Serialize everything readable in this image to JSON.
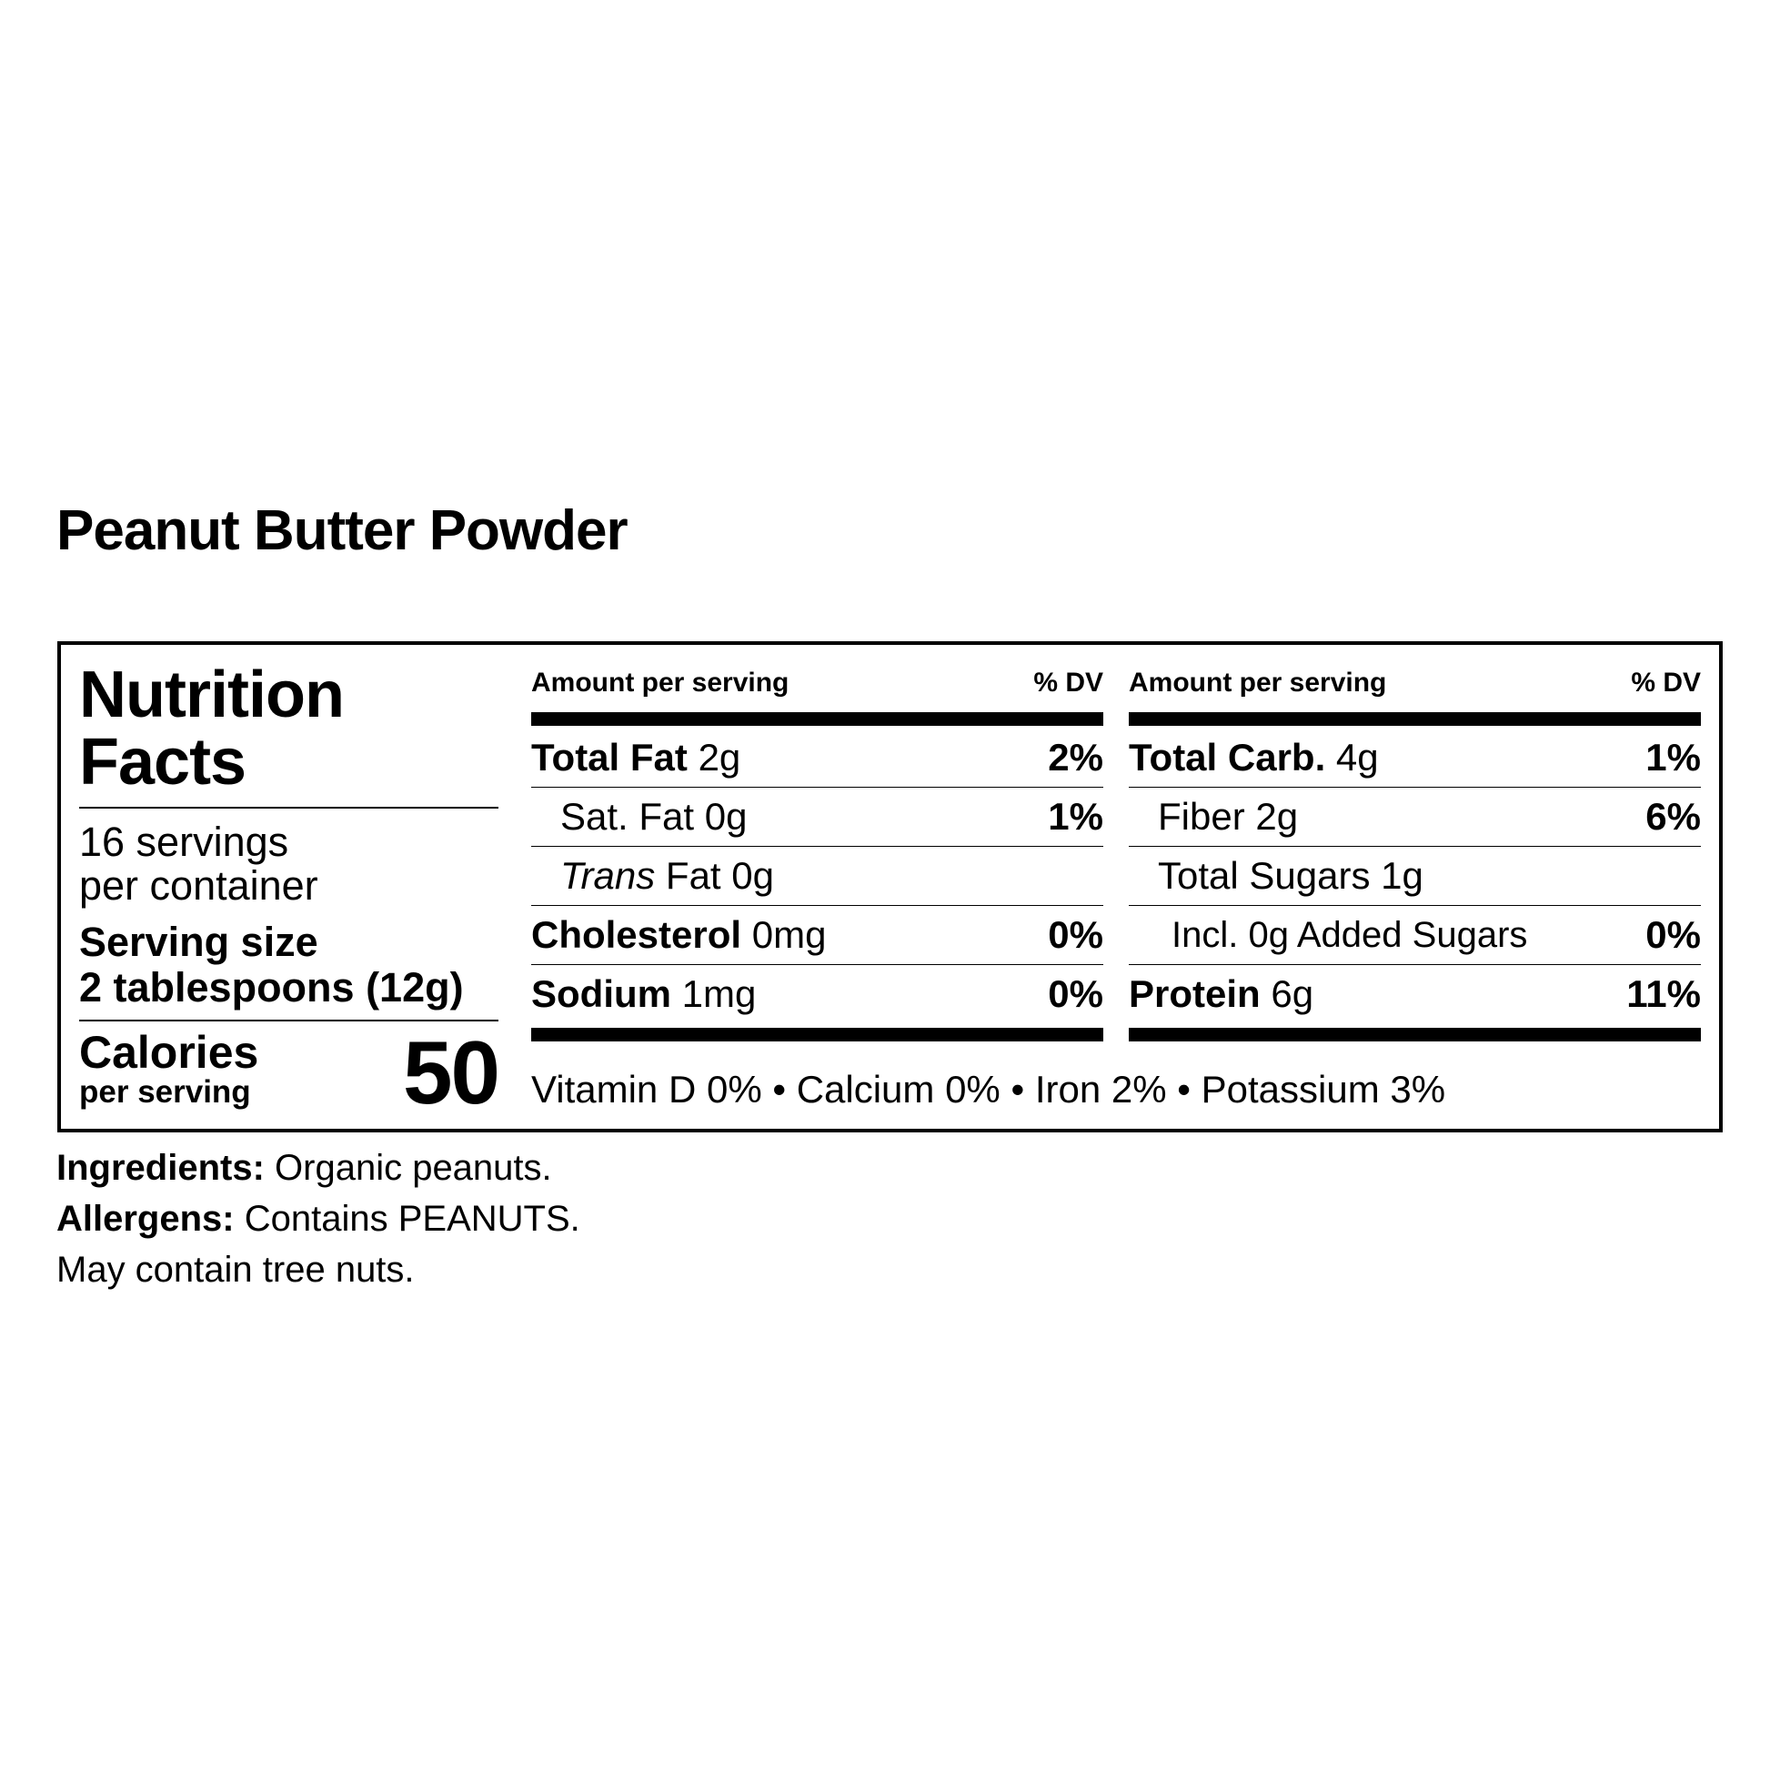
{
  "title": "Peanut Butter Powder",
  "label": {
    "heading_line1": "Nutrition",
    "heading_line2": "Facts",
    "servings_line1": "16 servings",
    "servings_line2": "per container",
    "serving_size_label": "Serving size",
    "serving_size_value": "2 tablespoons (12g)",
    "calories_label": "Calories",
    "calories_sub": "per serving",
    "calories_value": "50",
    "columns": [
      {
        "header_left": "Amount per serving",
        "header_right": "% DV",
        "rows": [
          {
            "name": "Total Fat",
            "amount": "2g",
            "dv": "2%"
          },
          {
            "name": "Sat. Fat",
            "amount": "0g",
            "dv": "1%"
          },
          {
            "name_italic": "Trans",
            "name": "Fat",
            "amount": "0g",
            "dv": ""
          },
          {
            "name": "Cholesterol",
            "amount": "0mg",
            "dv": "0%"
          },
          {
            "name": "Sodium",
            "amount": "1mg",
            "dv": "0%"
          }
        ]
      },
      {
        "header_left": "Amount per serving",
        "header_right": "% DV",
        "rows": [
          {
            "name": "Total Carb.",
            "amount": "4g",
            "dv": "1%"
          },
          {
            "name": "Fiber",
            "amount": "2g",
            "dv": "6%"
          },
          {
            "name": "Total Sugars",
            "amount": "1g",
            "dv": ""
          },
          {
            "name": "Incl. 0g Added Sugars",
            "amount": "",
            "dv": "0%"
          },
          {
            "name": "Protein",
            "amount": "6g",
            "dv": "11%"
          }
        ]
      }
    ],
    "vitamins": "Vitamin D 0% • Calcium 0% • Iron 2% • Potassium 3%"
  },
  "footer": {
    "ingredients_label": "Ingredients:",
    "ingredients_text": " Organic peanuts.",
    "allergens_label": "Allergens:",
    "allergens_text": " Contains PEANUTS.",
    "may_contain": "May contain tree nuts."
  }
}
